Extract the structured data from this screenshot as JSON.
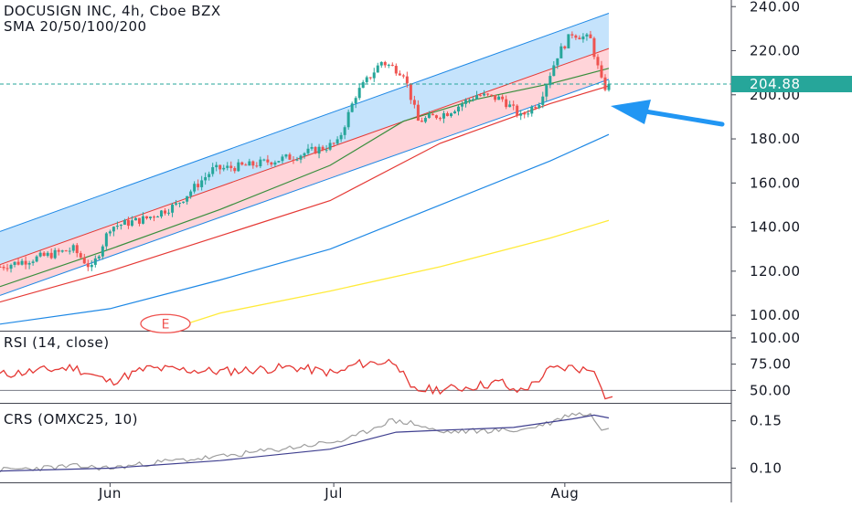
{
  "header": {
    "symbol_line": "DOCUSIGN INC, 4h, Cboe BZX",
    "sma_line": "SMA 20/50/100/200"
  },
  "price_marker": {
    "value": 204.88,
    "label": "204.88"
  },
  "earnings_marker": {
    "label": "E"
  },
  "colors": {
    "up": "#26a69a",
    "down": "#ef5350",
    "channel_upper_fill": "#bbdefb",
    "channel_lower_fill": "#ffcdd2",
    "sma20": "#388e3c",
    "sma50": "#e53935",
    "sma100": "#1e88e5",
    "sma200": "#ffeb3b",
    "rsi": "#e53935",
    "crs_line": "#9e9e9e",
    "crs_ma": "#3f3f8f",
    "arrow": "#2196f3"
  },
  "x_axis": {
    "ticks": [
      "Jun",
      "Jul",
      "Aug"
    ]
  },
  "indicators": {
    "rsi": {
      "title": "RSI (14, close)",
      "ticks": [
        "100.00",
        "75.00",
        "50.00"
      ]
    },
    "crs": {
      "title": "CRS (OMXC25, 10)",
      "ticks": [
        "0.15",
        "0.10"
      ]
    }
  },
  "chart_data": [
    {
      "type": "candlestick",
      "title": "DOCUSIGN INC, 4h, Cboe BZX",
      "y_ticks": [
        "240.00",
        "220.00",
        "200.00",
        "180.00",
        "160.00",
        "140.00",
        "120.00",
        "100.00"
      ],
      "ylim": [
        93,
        243
      ],
      "x_ticks": [
        "Jun",
        "Jul",
        "Aug"
      ],
      "price_trend_anchors": [
        {
          "bar": 0,
          "close": 122
        },
        {
          "bar": 10,
          "close": 126
        },
        {
          "bar": 20,
          "close": 130
        },
        {
          "bar": 25,
          "close": 121
        },
        {
          "bar": 30,
          "close": 140
        },
        {
          "bar": 40,
          "close": 144
        },
        {
          "bar": 48,
          "close": 150
        },
        {
          "bar": 58,
          "close": 166
        },
        {
          "bar": 68,
          "close": 168
        },
        {
          "bar": 80,
          "close": 172
        },
        {
          "bar": 92,
          "close": 178
        },
        {
          "bar": 97,
          "close": 200
        },
        {
          "bar": 104,
          "close": 215
        },
        {
          "bar": 110,
          "close": 210
        },
        {
          "bar": 114,
          "close": 188
        },
        {
          "bar": 122,
          "close": 192
        },
        {
          "bar": 130,
          "close": 200
        },
        {
          "bar": 137,
          "close": 198
        },
        {
          "bar": 142,
          "close": 190
        },
        {
          "bar": 147,
          "close": 197
        },
        {
          "bar": 152,
          "close": 218
        },
        {
          "bar": 156,
          "close": 228
        },
        {
          "bar": 161,
          "close": 225
        },
        {
          "bar": 164,
          "close": 206
        },
        {
          "bar": 166,
          "close": 201
        }
      ],
      "last_price": 204.88,
      "series": [
        {
          "name": "SMA 20",
          "values": [
            [
              0,
              113
            ],
            [
              30,
              130
            ],
            [
              60,
              148
            ],
            [
              90,
              168
            ],
            [
              110,
              188
            ],
            [
              130,
              198
            ],
            [
              150,
              205
            ],
            [
              166,
              212
            ]
          ]
        },
        {
          "name": "SMA 50",
          "values": [
            [
              0,
              106
            ],
            [
              30,
              120
            ],
            [
              60,
              136
            ],
            [
              90,
              152
            ],
            [
              120,
              178
            ],
            [
              150,
              196
            ],
            [
              166,
              204
            ]
          ]
        },
        {
          "name": "SMA 100",
          "values": [
            [
              0,
              96
            ],
            [
              30,
              103
            ],
            [
              60,
              116
            ],
            [
              90,
              130
            ],
            [
              120,
              150
            ],
            [
              150,
              170
            ],
            [
              166,
              182
            ]
          ]
        },
        {
          "name": "SMA 200",
          "values": [
            [
              45,
              93
            ],
            [
              60,
              101
            ],
            [
              90,
              111
            ],
            [
              120,
              122
            ],
            [
              150,
              135
            ],
            [
              166,
              143
            ]
          ]
        }
      ],
      "regression_channel": {
        "start": {
          "bar": 0,
          "upper": 138,
          "mid": 123,
          "lower": 109
        },
        "end": {
          "bar": 166,
          "upper": 237,
          "mid": 221,
          "lower": 207
        }
      }
    },
    {
      "type": "line",
      "title": "RSI (14, close)",
      "y_ticks": [
        "100.00",
        "75.00",
        "50.00"
      ],
      "ylim": [
        39,
        106
      ],
      "level": 50,
      "series": [
        {
          "name": "RSI",
          "values": [
            [
              0,
              65
            ],
            [
              20,
              72
            ],
            [
              30,
              58
            ],
            [
              40,
              71
            ],
            [
              60,
              68
            ],
            [
              80,
              72
            ],
            [
              92,
              66
            ],
            [
              97,
              75
            ],
            [
              108,
              78
            ],
            [
              112,
              50
            ],
            [
              125,
              52
            ],
            [
              137,
              58
            ],
            [
              140,
              48
            ],
            [
              145,
              55
            ],
            [
              150,
              70
            ],
            [
              156,
              72
            ],
            [
              162,
              68
            ],
            [
              164,
              52
            ],
            [
              165,
              42
            ],
            [
              167,
              44
            ]
          ]
        }
      ]
    },
    {
      "type": "line",
      "title": "CRS (OMXC25, 10)",
      "y_ticks": [
        "0.15",
        "0.10"
      ],
      "ylim": [
        0.085,
        0.168
      ],
      "series": [
        {
          "name": "CRS",
          "values": [
            [
              0,
              0.098
            ],
            [
              20,
              0.102
            ],
            [
              30,
              0.1
            ],
            [
              45,
              0.107
            ],
            [
              60,
              0.112
            ],
            [
              80,
              0.122
            ],
            [
              95,
              0.13
            ],
            [
              106,
              0.15
            ],
            [
              112,
              0.148
            ],
            [
              120,
              0.138
            ],
            [
              135,
              0.14
            ],
            [
              142,
              0.14
            ],
            [
              150,
              0.148
            ],
            [
              156,
              0.158
            ],
            [
              161,
              0.156
            ],
            [
              164,
              0.14
            ],
            [
              166,
              0.142
            ]
          ]
        },
        {
          "values": [
            [
              0,
              0.097
            ],
            [
              30,
              0.1
            ],
            [
              60,
              0.108
            ],
            [
              90,
              0.12
            ],
            [
              108,
              0.138
            ],
            [
              120,
              0.14
            ],
            [
              140,
              0.143
            ],
            [
              156,
              0.152
            ],
            [
              162,
              0.156
            ],
            [
              166,
              0.153
            ]
          ]
        }
      ]
    }
  ]
}
